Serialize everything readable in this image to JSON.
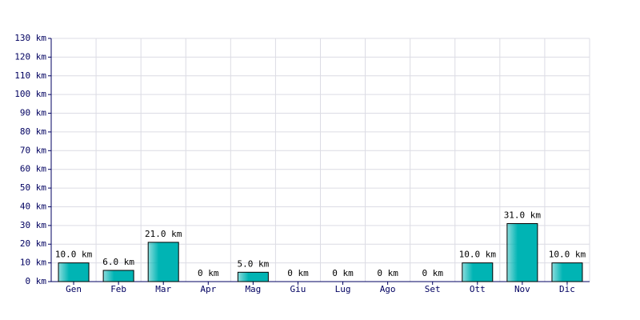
{
  "chart_data": {
    "type": "bar",
    "categories": [
      "Gen",
      "Feb",
      "Mar",
      "Apr",
      "Mag",
      "Giu",
      "Lug",
      "Ago",
      "Set",
      "Ott",
      "Nov",
      "Dic"
    ],
    "values": [
      10,
      6,
      21,
      0,
      5,
      0,
      0,
      0,
      0,
      10,
      31,
      10
    ],
    "value_labels": [
      "10.0 km",
      "6.0 km",
      "21.0 km",
      "0 km",
      "5.0 km",
      "0 km",
      "0 km",
      "0 km",
      "0 km",
      "10.0 km",
      "31.0 km",
      "10.0 km"
    ],
    "color": "#00b4b4",
    "ylim": [
      0,
      130
    ],
    "yticks": [
      {
        "value": 0,
        "label": "0 km"
      },
      {
        "value": 10,
        "label": "10 km"
      },
      {
        "value": 20,
        "label": "20 km"
      },
      {
        "value": 30,
        "label": "30 km"
      },
      {
        "value": 40,
        "label": "40 km"
      },
      {
        "value": 50,
        "label": "50 km"
      },
      {
        "value": 60,
        "label": "60 km"
      },
      {
        "value": 70,
        "label": "70 km"
      },
      {
        "value": 80,
        "label": "80 km"
      },
      {
        "value": 90,
        "label": "90 km"
      },
      {
        "value": 100,
        "label": "100 km"
      },
      {
        "value": 110,
        "label": "110 km"
      },
      {
        "value": 120,
        "label": "120 km"
      },
      {
        "value": 130,
        "label": "130 km"
      }
    ],
    "grid": true
  }
}
